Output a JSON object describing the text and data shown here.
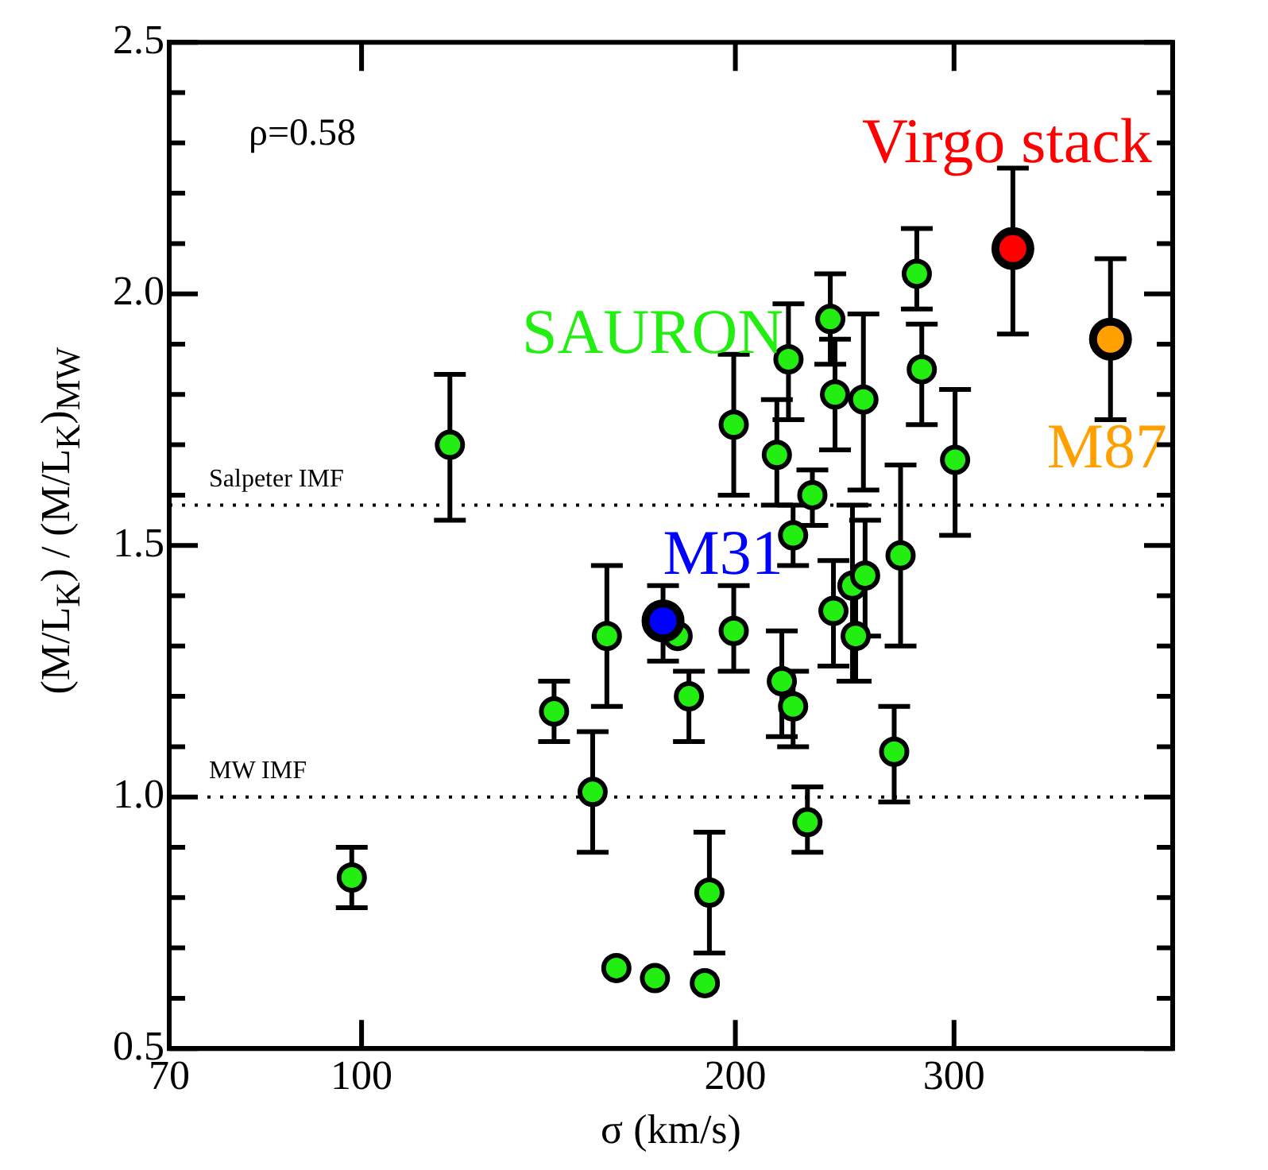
{
  "chart_data": {
    "type": "scatter",
    "xlabel": "σ (km/s)",
    "ylabel": "(M/L$_{K}$) / (M/L$_{K}$)$_{MW}$",
    "log": "x",
    "xlim": [
      70,
      450
    ],
    "xticks": [
      70,
      100,
      200,
      300
    ],
    "ylim": [
      0.5,
      2.5
    ],
    "yticks": [
      0.5,
      {
        "value": 0.6,
        "label": null
      },
      {
        "value": 0.7,
        "label": null
      },
      {
        "value": 0.8,
        "label": null
      },
      {
        "value": 0.9,
        "label": null
      },
      "1.0",
      {
        "value": 1.1,
        "label": null
      },
      {
        "value": 1.2,
        "label": null
      },
      {
        "value": 1.3,
        "label": null
      },
      {
        "value": 1.4,
        "label": null
      },
      1.5,
      {
        "value": 1.6,
        "label": null
      },
      {
        "value": 1.7,
        "label": null
      },
      {
        "value": 1.8,
        "label": null
      },
      {
        "value": 1.9,
        "label": null
      },
      "2.0",
      {
        "value": 2.1,
        "label": null
      },
      {
        "value": 2.2,
        "label": null
      },
      {
        "value": 2.3,
        "label": null
      },
      {
        "value": 2.4,
        "label": null
      },
      2.5
    ],
    "grid": false,
    "legend": "top right",
    "marker": "circle",
    "annotations": [
      "ρ=0.58"
    ],
    "ref_lines": [
      {
        "axis": "y",
        "value": 1.58,
        "label": "Salpeter IMF",
        "line_style": "dotted"
      },
      {
        "axis": "y",
        "value": 1.0,
        "label": "MW IMF",
        "line_style": "dotted"
      }
    ],
    "series": [
      {
        "name": "SAURON",
        "color": "#22ee11",
        "x": [
          98.2,
          117.8,
          142.9,
          153.5,
          157.6,
          160.4,
          172.3,
          179.7,
          183.5,
          189,
          190.6,
          199.4,
          199.4,
          216,
          218,
          222.6,
          220.7,
          222.6,
          228.6,
          230.7,
          238.5,
          240.6,
          239.9,
          248.5,
          250,
          253.6,
          254.4,
          268.5,
          271.7,
          280,
          282.6,
          300.6
        ],
        "values": [
          0.84,
          1.7,
          1.17,
          1.01,
          1.32,
          0.66,
          0.64,
          1.32,
          1.2,
          0.63,
          0.81,
          1.74,
          1.33,
          1.68,
          1.23,
          1.18,
          1.87,
          1.52,
          0.95,
          1.6,
          1.95,
          1.8,
          1.37,
          1.42,
          1.32,
          1.79,
          1.44,
          1.09,
          1.48,
          2.04,
          1.85,
          1.67
        ],
        "errors": [
          [
            0.78,
            0.9
          ],
          [
            1.55,
            1.84
          ],
          [
            1.11,
            1.23
          ],
          [
            0.89,
            1.13
          ],
          [
            1.18,
            1.46
          ],
          null,
          null,
          null,
          [
            1.11,
            1.25
          ],
          null,
          [
            0.69,
            0.93
          ],
          [
            1.6,
            1.88
          ],
          [
            1.25,
            1.42
          ],
          [
            1.58,
            1.79
          ],
          [
            1.12,
            1.33
          ],
          [
            1.1,
            1.25
          ],
          [
            1.75,
            1.98
          ],
          [
            1.46,
            1.58
          ],
          [
            0.89,
            1.02
          ],
          [
            1.54,
            1.65
          ],
          [
            1.86,
            2.04
          ],
          [
            1.69,
            1.91
          ],
          [
            1.26,
            1.47
          ],
          [
            1.23,
            1.58
          ],
          [
            1.23,
            1.42
          ],
          [
            1.61,
            1.96
          ],
          [
            1.32,
            1.55
          ],
          [
            0.99,
            1.18
          ],
          [
            1.3,
            1.66
          ],
          [
            1.97,
            2.13
          ],
          [
            1.74,
            1.94
          ],
          [
            1.52,
            1.81
          ]
        ]
      },
      {
        "name": "M31",
        "color": "#0000ff",
        "x": [
          174.9
        ],
        "values": [
          1.35
        ],
        "errors": [
          [
            1.27,
            1.42
          ]
        ]
      },
      {
        "name": "Virgo stack",
        "color": "#ff0000",
        "x": [
          334.6
        ],
        "values": [
          2.09
        ],
        "errors": [
          [
            1.92,
            2.25
          ]
        ]
      },
      {
        "name": "M87",
        "color": "#ffa000",
        "x": [
          401
        ],
        "values": [
          1.91
        ],
        "errors": [
          [
            1.75,
            2.07
          ]
        ]
      }
    ]
  }
}
